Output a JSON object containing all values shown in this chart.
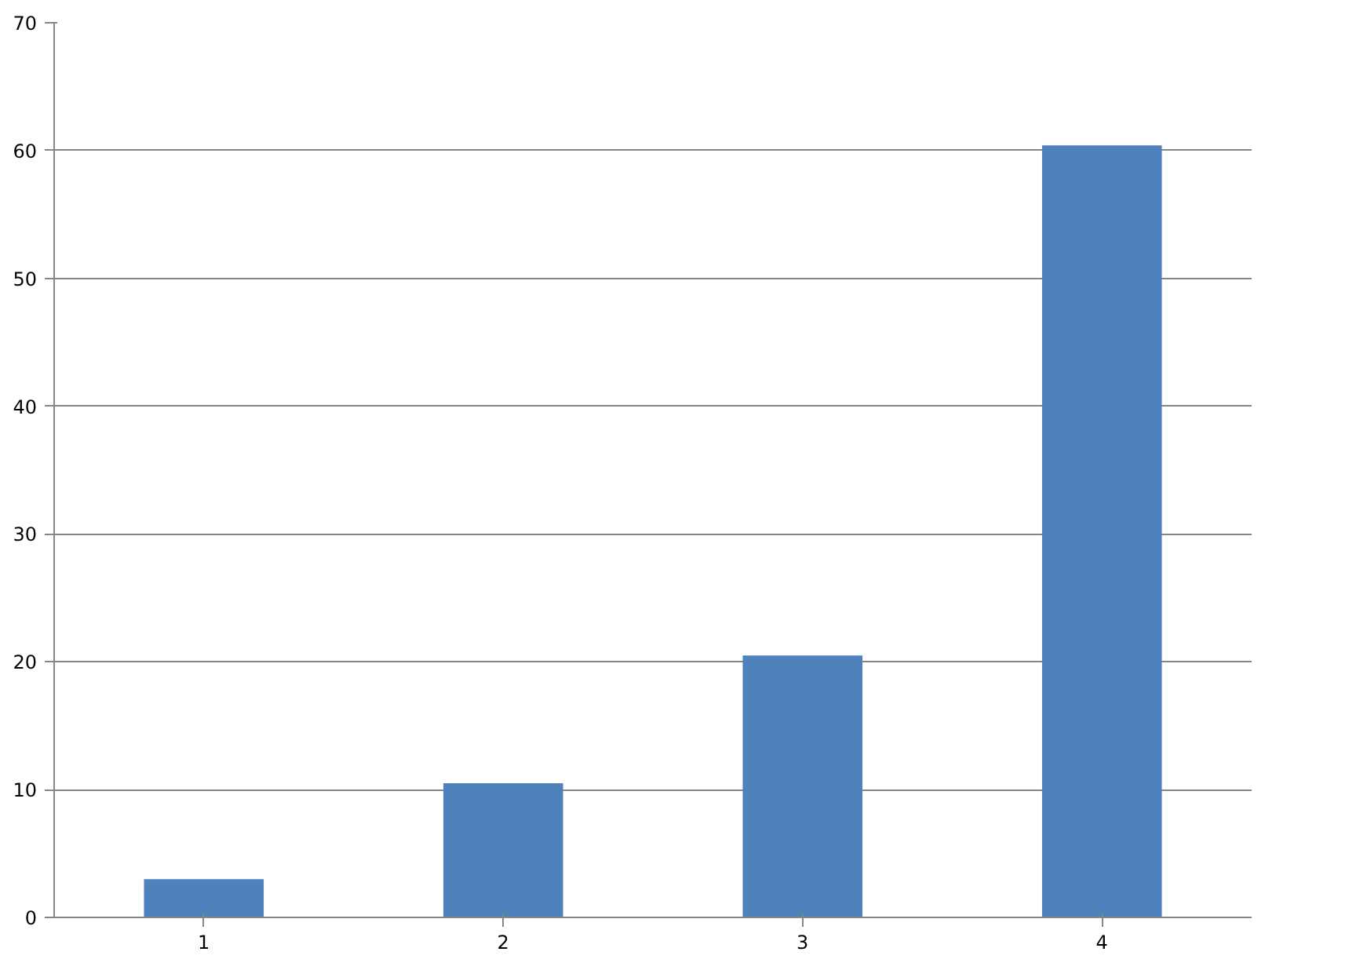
{
  "chart_data": {
    "type": "bar",
    "categories": [
      "1",
      "2",
      "3",
      "4"
    ],
    "values": [
      3,
      10.5,
      20.5,
      60.4
    ],
    "color": "#4f81bd",
    "ylim": [
      0,
      70
    ],
    "yticks": [
      0,
      10,
      20,
      30,
      40,
      50,
      60,
      70
    ],
    "grid": "y"
  }
}
